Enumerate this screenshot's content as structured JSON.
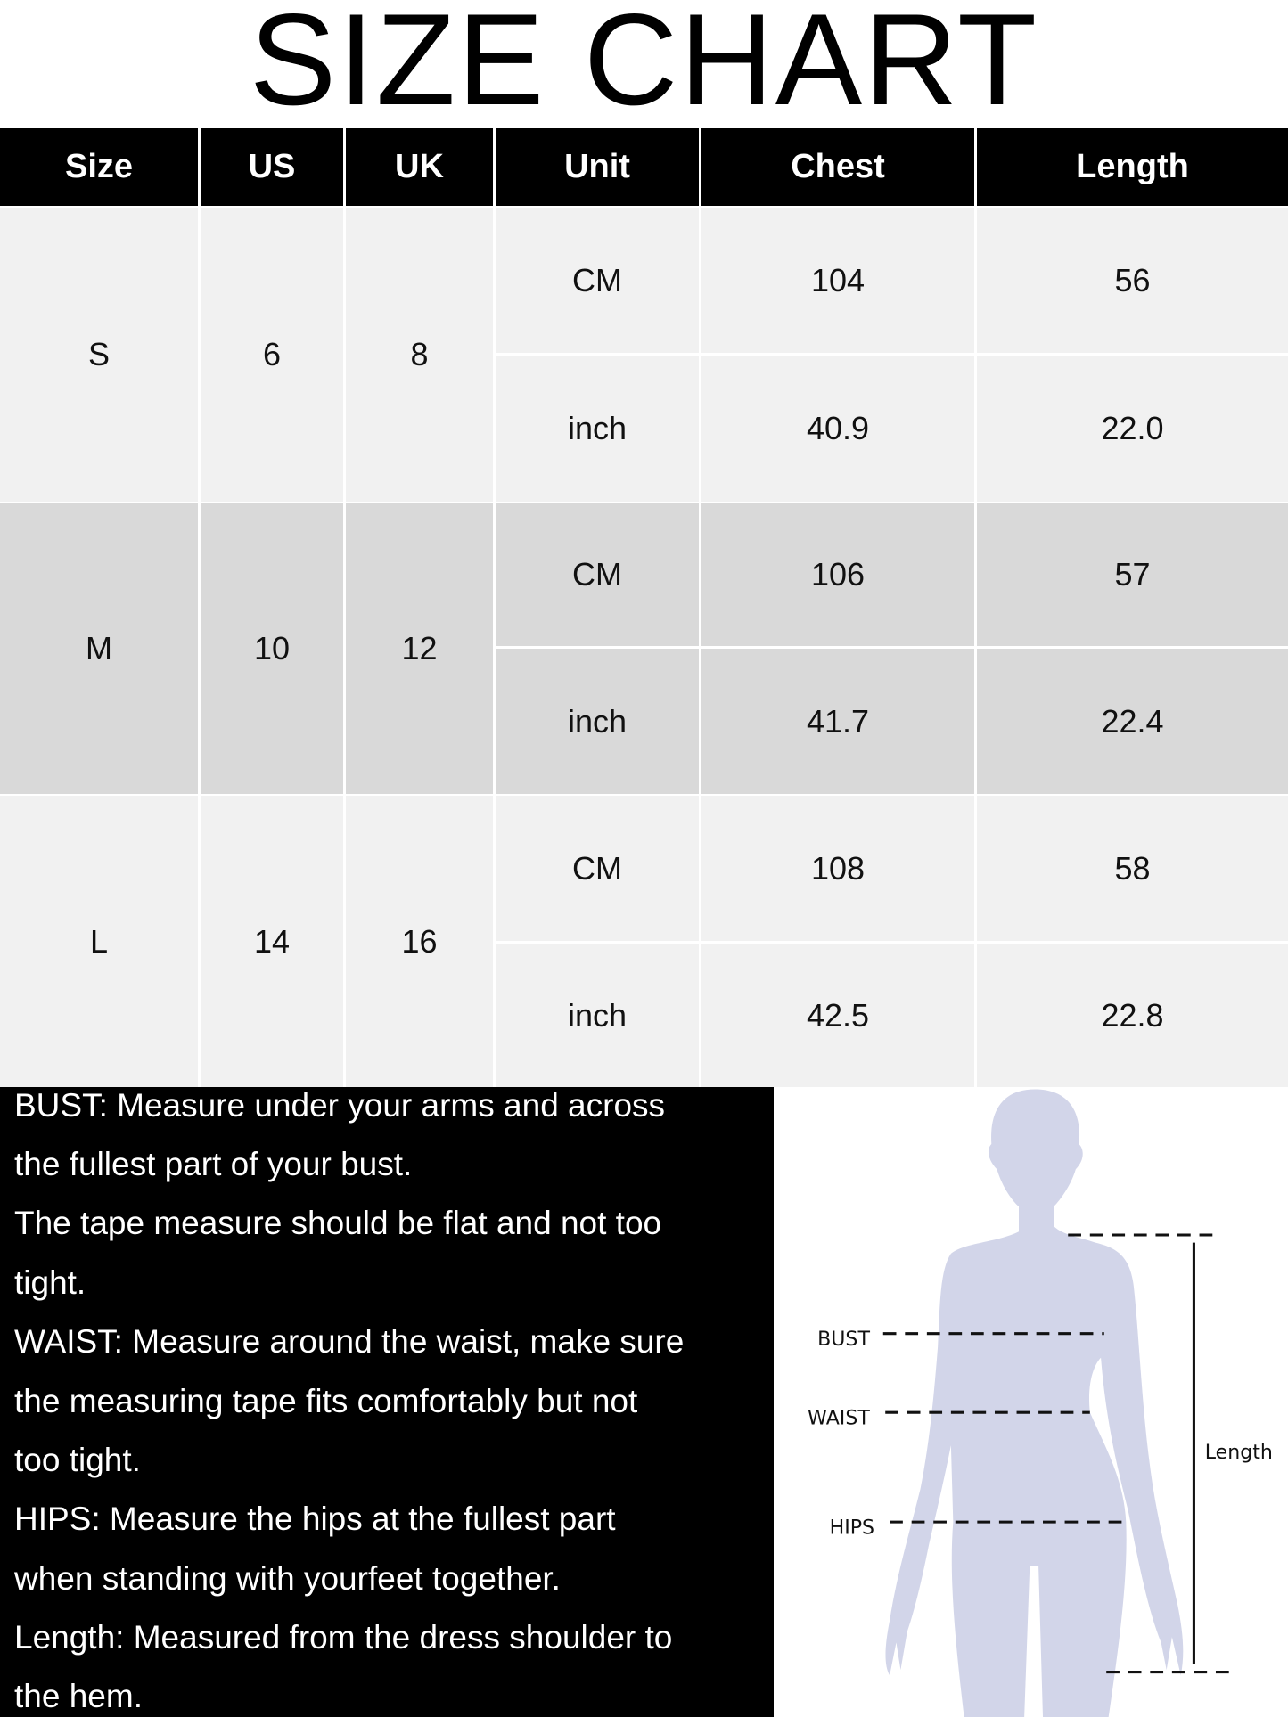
{
  "title": "SIZE CHART",
  "table": {
    "headers": [
      "Size",
      "US",
      "UK",
      "Unit",
      "Chest",
      "Length"
    ],
    "rows": [
      {
        "size": "S",
        "us": "6",
        "uk": "8",
        "cm": {
          "unit": "CM",
          "chest": "104",
          "length": "56"
        },
        "inch": {
          "unit": "inch",
          "chest": "40.9",
          "length": "22.0"
        }
      },
      {
        "size": "M",
        "us": "10",
        "uk": "12",
        "cm": {
          "unit": "CM",
          "chest": "106",
          "length": "57"
        },
        "inch": {
          "unit": "inch",
          "chest": "41.7",
          "length": "22.4"
        }
      },
      {
        "size": "L",
        "us": "14",
        "uk": "16",
        "cm": {
          "unit": "CM",
          "chest": "108",
          "length": "58"
        },
        "inch": {
          "unit": "inch",
          "chest": "42.5",
          "length": "22.8"
        }
      }
    ]
  },
  "notes": {
    "lines": [
      "BUST: Measure under your arms and across",
      "the fullest part of your bust.",
      "The tape measure should be flat and not too",
      "tight.",
      "WAIST: Measure around the waist, make sure",
      "the measuring tape fits comfortably but not",
      "too tight.",
      "HIPS: Measure the hips at the fullest part",
      "when standing with yourfeet together.",
      "Length: Measured from the dress shoulder to",
      "the hem."
    ]
  },
  "figure": {
    "bust": "BUST",
    "waist": "WAIST",
    "hips": "HIPS",
    "length": "Length",
    "silhouette_color": "#d2d5e9"
  }
}
